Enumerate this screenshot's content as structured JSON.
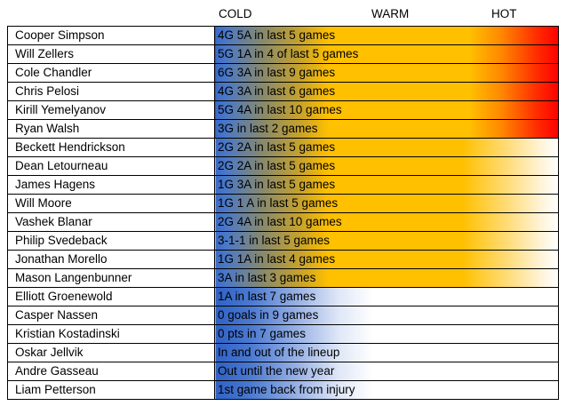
{
  "header": {
    "cold": "COLD",
    "warm": "WARM",
    "hot": "HOT"
  },
  "colors": {
    "cold": "#3a6bc8",
    "warm": "#ffc000",
    "hot": "#ff0000"
  },
  "rows": [
    {
      "name": "Cooper Simpson",
      "stat": "4G 5A in last 5 games",
      "level": "hot"
    },
    {
      "name": "Will Zellers",
      "stat": "5G 1A in 4 of last 5 games",
      "level": "hot"
    },
    {
      "name": "Cole Chandler",
      "stat": "6G 3A in last 9 games",
      "level": "hot"
    },
    {
      "name": "Chris Pelosi",
      "stat": "4G 3A in last 6 games",
      "level": "hot"
    },
    {
      "name": "Kirill Yemelyanov",
      "stat": "5G 4A in last 10 games",
      "level": "hot"
    },
    {
      "name": "Ryan Walsh",
      "stat": "3G in last 2 games",
      "level": "hot"
    },
    {
      "name": "Beckett Hendrickson",
      "stat": "2G 2A in last 5 games",
      "level": "warm"
    },
    {
      "name": "Dean Letourneau",
      "stat": "2G 2A in last 5 games",
      "level": "warm"
    },
    {
      "name": "James Hagens",
      "stat": "1G 3A in last 5 games",
      "level": "warm"
    },
    {
      "name": "Will Moore",
      "stat": "1G 1 A in last 5 games",
      "level": "warm"
    },
    {
      "name": "Vashek Blanar",
      "stat": "2G 4A in last 10 games",
      "level": "warm"
    },
    {
      "name": "Philip Svedeback",
      "stat": "3-1-1 in last 5 games",
      "level": "warm"
    },
    {
      "name": "Jonathan Morello",
      "stat": "1G 1A in last 4 games",
      "level": "warm"
    },
    {
      "name": "Mason Langenbunner",
      "stat": "3A in last 3 games",
      "level": "warm"
    },
    {
      "name": "Elliott Groenewold",
      "stat": "1A in last 7 games",
      "level": "cold"
    },
    {
      "name": "Casper Nassen",
      "stat": "0 goals in 9 games",
      "level": "cold"
    },
    {
      "name": "Kristian Kostadinski",
      "stat": "0 pts in 7 games",
      "level": "cold"
    },
    {
      "name": "Oskar Jellvik",
      "stat": "In and out of the lineup",
      "level": "cold"
    },
    {
      "name": "Andre Gasseau",
      "stat": "Out until the new year",
      "level": "cold"
    },
    {
      "name": "Liam Petterson",
      "stat": "1st game back from injury",
      "level": "cold"
    }
  ]
}
